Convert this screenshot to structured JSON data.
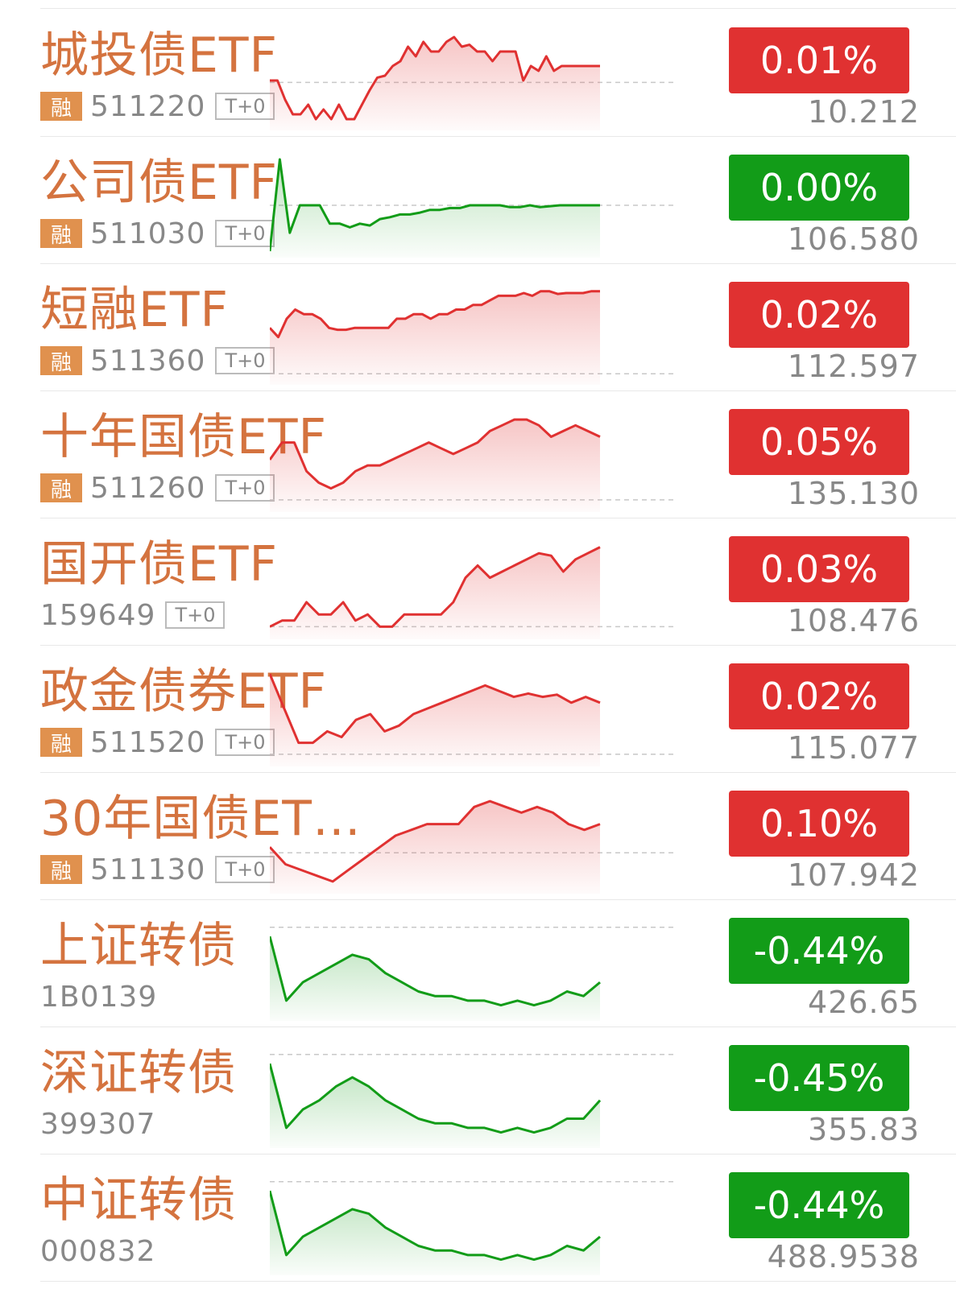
{
  "colors": {
    "up": "#e03131",
    "down": "#129c18",
    "name": "#d4733f"
  },
  "items": [
    {
      "name": "城投债ETF",
      "rong": "融",
      "code": "511220",
      "tplus": "T+0",
      "change": "0.01%",
      "price": "10.212",
      "trend": "up",
      "series": [
        0.5,
        0.5,
        -1.5,
        -3,
        -3,
        -2,
        -3.5,
        -2.5,
        -3.5,
        -2,
        -3.5,
        -3.5,
        -2,
        -0.5,
        0.8,
        1,
        2,
        2.5,
        4,
        3,
        4.5,
        3.5,
        3.5,
        4.5,
        5,
        4,
        4.2,
        3.5,
        3.5,
        2.5,
        3.5,
        3.5,
        3.5,
        0.5,
        2,
        1.5,
        3,
        1.5,
        2,
        2,
        2,
        2,
        2,
        2
      ],
      "baseline": 0.3,
      "ymin": -4,
      "ymax": 5.5
    },
    {
      "name": "公司债ETF",
      "rong": "融",
      "code": "511030",
      "tplus": "T+0",
      "change": "0.00%",
      "price": "106.580",
      "trend": "down",
      "series": [
        -5,
        5,
        -3,
        0,
        0,
        0,
        -2,
        -2,
        -2.4,
        -2,
        -2.2,
        -1.5,
        -1.3,
        -1,
        -1,
        -0.8,
        -0.5,
        -0.5,
        -0.3,
        -0.3,
        0,
        0,
        0,
        0,
        -0.2,
        -0.2,
        0,
        -0.2,
        -0.1,
        0,
        0,
        0,
        0,
        0
      ],
      "baseline": 0,
      "ymin": -5,
      "ymax": 5
    },
    {
      "name": "短融ETF",
      "rong": "融",
      "code": "511360",
      "tplus": "T+0",
      "change": "0.02%",
      "price": "112.597",
      "trend": "up",
      "series": [
        0,
        -1,
        1,
        2,
        1.5,
        1.5,
        1,
        0,
        -0.2,
        -0.2,
        0,
        0,
        0,
        0,
        0,
        1,
        1,
        1.5,
        1.5,
        1,
        1.5,
        1.5,
        2,
        2,
        2.5,
        2.5,
        3,
        3.5,
        3.5,
        3.5,
        3.8,
        3.5,
        4,
        4,
        3.7,
        3.8,
        3.8,
        3.8,
        4,
        4
      ],
      "baseline": -5,
      "ymin": -5.5,
      "ymax": 4.5
    },
    {
      "name": "十年国债ETF",
      "rong": "融",
      "code": "511260",
      "tplus": "T+0",
      "change": "0.05%",
      "price": "135.130",
      "trend": "up",
      "series": [
        0,
        1.5,
        1.5,
        -1,
        -2,
        -2.5,
        -2,
        -1,
        -0.5,
        -0.5,
        0,
        0.5,
        1,
        1.5,
        1,
        0.5,
        1,
        1.5,
        2.5,
        3,
        3.5,
        3.5,
        3,
        2,
        2.5,
        3,
        2.5,
        2
      ],
      "baseline": -3.5,
      "ymin": -4,
      "ymax": 4
    },
    {
      "name": "国开债ETF",
      "rong": "",
      "code": "159649",
      "tplus": "T+0",
      "change": "0.03%",
      "price": "108.476",
      "trend": "up",
      "series": [
        -3,
        -2.5,
        -2.5,
        -1,
        -2,
        -2,
        -1,
        -2.5,
        -2,
        -3,
        -3,
        -2,
        -2,
        -2,
        -2,
        -1,
        1,
        2,
        1,
        1.5,
        2,
        2.5,
        3,
        2.8,
        1.5,
        2.5,
        3,
        3.5
      ],
      "baseline": -3,
      "ymin": -3.5,
      "ymax": 4
    },
    {
      "name": "政金债券ETF",
      "rong": "融",
      "code": "511520",
      "tplus": "T+0",
      "change": "0.02%",
      "price": "115.077",
      "trend": "up",
      "series": [
        4,
        1,
        -2,
        -2,
        -1,
        -1.5,
        0,
        0.5,
        -1,
        -0.5,
        0.5,
        1,
        1.5,
        2,
        2.5,
        3,
        2.5,
        2,
        2.3,
        2,
        2.2,
        1.5,
        2,
        1.5
      ],
      "baseline": -3,
      "ymin": -3.5,
      "ymax": 4.5
    },
    {
      "name": "30年国债ET…",
      "rong": "融",
      "code": "511130",
      "tplus": "T+0",
      "change": "0.10%",
      "price": "107.942",
      "trend": "up",
      "series": [
        0,
        -1.5,
        -2,
        -2.5,
        -3,
        -2,
        -1,
        0,
        1,
        1.5,
        2,
        2,
        2,
        3.5,
        4,
        3.5,
        3,
        3.5,
        3,
        2,
        1.5,
        2
      ],
      "baseline": -0.5,
      "ymin": -3.5,
      "ymax": 4.5
    },
    {
      "name": "上证转债",
      "rong": "",
      "code": "1B0139",
      "tplus": "",
      "change": "-0.44%",
      "price": "426.65",
      "trend": "down",
      "series": [
        4,
        -3,
        -1,
        0,
        1,
        2,
        1.5,
        0,
        -1,
        -2,
        -2.5,
        -2.5,
        -3,
        -3,
        -3.5,
        -3,
        -3.5,
        -3,
        -2,
        -2.5,
        -1
      ],
      "baseline": 5,
      "ymin": -4.5,
      "ymax": 5.5
    },
    {
      "name": "深证转债",
      "rong": "",
      "code": "399307",
      "tplus": "",
      "change": "-0.45%",
      "price": "355.83",
      "trend": "down",
      "series": [
        4,
        -3,
        -1,
        0,
        1.5,
        2.5,
        1.5,
        0,
        -1,
        -2,
        -2.5,
        -2.5,
        -3,
        -3,
        -3.5,
        -3,
        -3.5,
        -3,
        -2,
        -2,
        0
      ],
      "baseline": 5,
      "ymin": -4.5,
      "ymax": 5.5
    },
    {
      "name": "中证转债",
      "rong": "",
      "code": "000832",
      "tplus": "",
      "change": "-0.44%",
      "price": "488.9538",
      "trend": "down",
      "series": [
        4,
        -3,
        -1,
        0,
        1,
        2,
        1.5,
        0,
        -1,
        -2,
        -2.5,
        -2.5,
        -3,
        -3,
        -3.5,
        -3,
        -3.5,
        -3,
        -2,
        -2.5,
        -1
      ],
      "baseline": 5,
      "ymin": -4.5,
      "ymax": 5.5
    }
  ]
}
